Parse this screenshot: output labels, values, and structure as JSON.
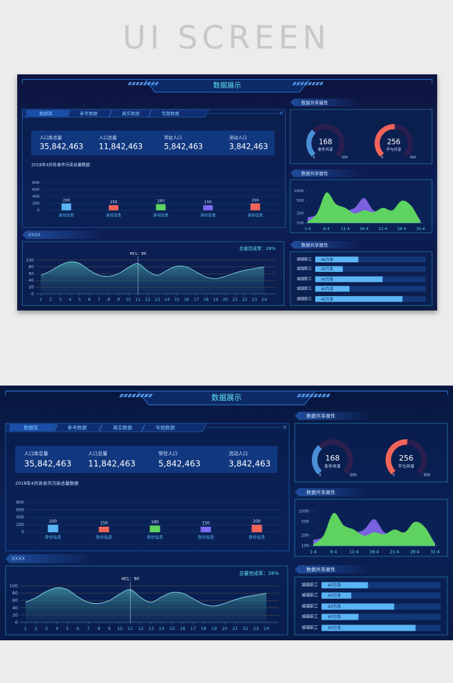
{
  "page_title": "UI SCREEN",
  "dashboard": {
    "title": "数据展示",
    "tabs": [
      "数据库",
      "参考数据",
      "真实数据",
      "专题数据"
    ],
    "stats": [
      {
        "label": "人口库总量",
        "value": "35,842,463"
      },
      {
        "label": "人口总量",
        "value": "11,842,463"
      },
      {
        "label": "常驻人口",
        "value": "5,842,463"
      },
      {
        "label": "流动人口",
        "value": "3,842,463"
      }
    ],
    "bar_chart": {
      "type": "bar",
      "title": "2018年4月各省市污染总量数据",
      "categories": [
        "身份信息",
        "身份信息",
        "身份信息",
        "身份信息",
        "身份信息"
      ],
      "values": [
        200,
        150,
        180,
        150,
        200
      ],
      "colors": [
        "#5ab4f5",
        "#f2645a",
        "#5fd35f",
        "#7a6bf0",
        "#f2645a"
      ],
      "ylim": [
        0,
        800
      ],
      "yticks": [
        0,
        200,
        400,
        600,
        800
      ]
    },
    "section_label": "XXXX",
    "area_chart": {
      "type": "area",
      "annotation": "总量完成率：28%",
      "highlight": {
        "text": "HCL：90",
        "x": 11
      },
      "x": [
        1,
        2,
        3,
        4,
        5,
        6,
        7,
        8,
        9,
        10,
        11,
        12,
        13,
        14,
        15,
        16,
        17,
        18,
        19,
        20,
        21,
        22,
        23,
        24
      ],
      "values": [
        55,
        68,
        85,
        95,
        90,
        70,
        55,
        52,
        60,
        78,
        90,
        68,
        55,
        70,
        82,
        80,
        65,
        50,
        45,
        52,
        62,
        70,
        75,
        80
      ],
      "xlim": [
        1,
        24
      ],
      "xticks": [
        1,
        2,
        3,
        4,
        5,
        6,
        7,
        8,
        9,
        10,
        11,
        12,
        13,
        14,
        15,
        16,
        17,
        18,
        19,
        20,
        21,
        22,
        23,
        24
      ],
      "ylim": [
        0,
        100
      ],
      "yticks": [
        0,
        20,
        40,
        60,
        80,
        100
      ],
      "color": "#7fd0e0"
    },
    "panel_titles": [
      "数据共享属性",
      "数据共享属性",
      "数据共享属性"
    ],
    "gauges": [
      {
        "value": 168,
        "label": "条件共享",
        "min": 0,
        "max": 500,
        "color": "#4a8fd6"
      },
      {
        "value": 256,
        "label": "不与共享",
        "min": 0,
        "max": 500,
        "color": "#f2645a"
      }
    ],
    "line_chart": {
      "type": "area",
      "categories": [
        "1-4",
        null,
        "6-4",
        null,
        "11-4",
        null,
        "16-4",
        null,
        "21-4",
        null,
        "26-4",
        null,
        "31-4"
      ],
      "series": [
        {
          "color": "#7b62e0",
          "values": [
            150,
            180,
            300,
            300,
            250,
            300,
            600,
            250,
            250,
            250,
            300,
            300,
            120
          ]
        },
        {
          "color": "#5fd35f",
          "values": [
            110,
            200,
            900,
            400,
            300,
            200,
            250,
            220,
            300,
            250,
            500,
            350,
            110
          ]
        }
      ],
      "log": true,
      "ylim": [
        100,
        1000
      ],
      "yticks": [
        100,
        200,
        500,
        1000
      ]
    },
    "share_list": {
      "xlim": [
        0,
        100
      ],
      "rows": [
        {
          "label": "城镇职工",
          "text": "40万条",
          "value": 39
        },
        {
          "label": "城镇职工",
          "text": "40万条",
          "value": 25
        },
        {
          "label": "城镇职工",
          "text": "40万条",
          "value": 61
        },
        {
          "label": "城镇职工",
          "text": "40万条",
          "value": 31
        },
        {
          "label": "城镇职工",
          "text": "40万条",
          "value": 79
        }
      ]
    }
  }
}
